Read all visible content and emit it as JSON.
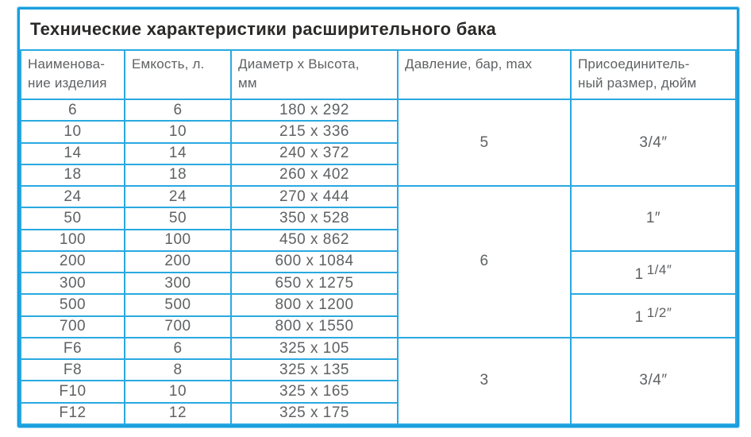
{
  "title": "Технические характеристики расширительного бака",
  "colors": {
    "grid": "#29a9e1",
    "frame": "#1b9ede",
    "frame_outer": "#8ed5f2",
    "title_text": "#2b2a29",
    "cell_text": "#5f6163"
  },
  "table": {
    "headers": [
      {
        "key": "name",
        "label": "Наименова-\nние изделия"
      },
      {
        "key": "capacity",
        "label": "Емкость, л."
      },
      {
        "key": "dimensions",
        "label": "Диаметр x Высота,\nмм"
      },
      {
        "key": "pressure",
        "label": "Давление, бар, max"
      },
      {
        "key": "connection",
        "label": "Присоединитель-\nный размер, дюйм"
      }
    ],
    "rows": [
      {
        "name": "6",
        "capacity": "6",
        "dimensions": "180 x 292"
      },
      {
        "name": "10",
        "capacity": "10",
        "dimensions": "215 x 336"
      },
      {
        "name": "14",
        "capacity": "14",
        "dimensions": "240 x 372"
      },
      {
        "name": "18",
        "capacity": "18",
        "dimensions": "260 x 402"
      },
      {
        "name": "24",
        "capacity": "24",
        "dimensions": "270 x 444"
      },
      {
        "name": "50",
        "capacity": "50",
        "dimensions": "350 x 528"
      },
      {
        "name": "100",
        "capacity": "100",
        "dimensions": "450 x 862"
      },
      {
        "name": "200",
        "capacity": "200",
        "dimensions": "600 x 1084"
      },
      {
        "name": "300",
        "capacity": "300",
        "dimensions": "650 x 1275"
      },
      {
        "name": "500",
        "capacity": "500",
        "dimensions": "800 x 1200"
      },
      {
        "name": "700",
        "capacity": "700",
        "dimensions": "800 x 1550"
      },
      {
        "name": "F6",
        "capacity": "6",
        "dimensions": "325 x 105"
      },
      {
        "name": "F8",
        "capacity": "8",
        "dimensions": "325 x 135"
      },
      {
        "name": "F10",
        "capacity": "10",
        "dimensions": "325 x 165"
      },
      {
        "name": "F12",
        "capacity": "12",
        "dimensions": "325 x 175"
      }
    ],
    "pressure_groups": [
      {
        "value": "5",
        "rowspan": 4
      },
      {
        "value": "6",
        "rowspan": 7
      },
      {
        "value": "3",
        "rowspan": 4
      }
    ],
    "connection_groups": [
      {
        "label": "3/4″",
        "rowspan": 4
      },
      {
        "label": "1″",
        "rowspan": 3
      },
      {
        "base": "1",
        "frac": "1/4″",
        "rowspan": 2
      },
      {
        "base": "1",
        "frac": "1/2″",
        "rowspan": 2
      },
      {
        "label": "3/4″",
        "rowspan": 4
      }
    ]
  }
}
